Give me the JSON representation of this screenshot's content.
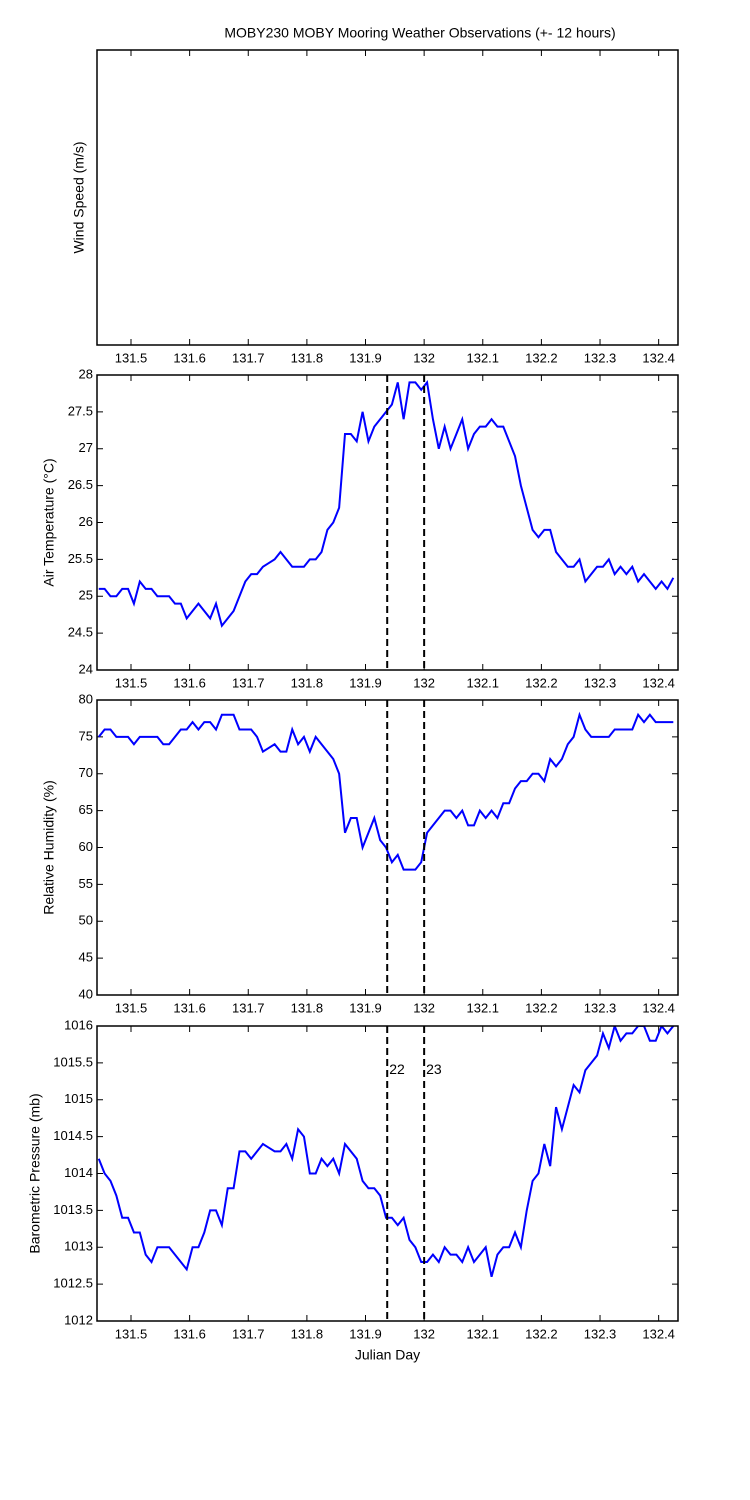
{
  "chart_data": [
    {
      "type": "line",
      "title": "MOBY230 MOBY Mooring Weather Observations (+- 12 hours)",
      "ylabel": "Wind Speed (m/s)",
      "xlim": [
        131.442,
        132.433
      ],
      "xticks": [
        131.5,
        131.6,
        131.7,
        131.8,
        131.9,
        132,
        132.1,
        132.2,
        132.3,
        132.4
      ]
    },
    {
      "type": "line",
      "ylabel": "Air Temperature (°C)",
      "color": "#0000ff",
      "xlim": [
        131.442,
        132.433
      ],
      "xticks": [
        131.5,
        131.6,
        131.7,
        131.8,
        131.9,
        132,
        132.1,
        132.2,
        132.3,
        132.4
      ],
      "ylim": [
        24,
        28
      ],
      "yticks": [
        24,
        24.5,
        25,
        25.5,
        26,
        26.5,
        27,
        27.5,
        28
      ],
      "vlines": [
        131.937,
        132.0
      ],
      "x": [
        131.445,
        131.455,
        131.465,
        131.475,
        131.485,
        131.495,
        131.505,
        131.515,
        131.525,
        131.535,
        131.545,
        131.555,
        131.565,
        131.575,
        131.585,
        131.595,
        131.605,
        131.615,
        131.625,
        131.635,
        131.645,
        131.655,
        131.665,
        131.675,
        131.685,
        131.695,
        131.705,
        131.715,
        131.725,
        131.735,
        131.745,
        131.755,
        131.765,
        131.775,
        131.785,
        131.795,
        131.805,
        131.815,
        131.825,
        131.835,
        131.845,
        131.855,
        131.865,
        131.875,
        131.885,
        131.895,
        131.905,
        131.915,
        131.925,
        131.935,
        131.945,
        131.955,
        131.965,
        131.975,
        131.985,
        131.995,
        132.005,
        132.015,
        132.025,
        132.035,
        132.045,
        132.055,
        132.065,
        132.075,
        132.085,
        132.095,
        132.105,
        132.115,
        132.125,
        132.135,
        132.145,
        132.155,
        132.165,
        132.175,
        132.185,
        132.195,
        132.205,
        132.215,
        132.225,
        132.235,
        132.245,
        132.255,
        132.265,
        132.275,
        132.285,
        132.295,
        132.305,
        132.315,
        132.325,
        132.335,
        132.345,
        132.355,
        132.365,
        132.375,
        132.385,
        132.395,
        132.405,
        132.415,
        132.425
      ],
      "values": [
        25.1,
        25.1,
        25.0,
        25.0,
        25.1,
        25.1,
        24.9,
        25.2,
        25.1,
        25.1,
        25.0,
        25.0,
        25.0,
        24.9,
        24.9,
        24.7,
        24.8,
        24.9,
        24.8,
        24.7,
        24.9,
        24.6,
        24.7,
        24.8,
        25.0,
        25.2,
        25.3,
        25.3,
        25.4,
        25.45,
        25.5,
        25.6,
        25.5,
        25.4,
        25.4,
        25.4,
        25.5,
        25.5,
        25.6,
        25.9,
        26.0,
        26.2,
        27.2,
        27.2,
        27.1,
        27.5,
        27.1,
        27.3,
        27.4,
        27.5,
        27.6,
        27.9,
        27.4,
        27.9,
        27.9,
        27.8,
        27.9,
        27.4,
        27.0,
        27.3,
        27.0,
        27.2,
        27.4,
        27.0,
        27.2,
        27.3,
        27.3,
        27.4,
        27.3,
        27.3,
        27.1,
        26.9,
        26.5,
        26.2,
        25.9,
        25.8,
        25.9,
        25.9,
        25.6,
        25.5,
        25.4,
        25.4,
        25.5,
        25.2,
        25.3,
        25.4,
        25.4,
        25.5,
        25.3,
        25.4,
        25.3,
        25.4,
        25.2,
        25.3,
        25.2,
        25.1,
        25.2,
        25.1,
        25.25
      ]
    },
    {
      "type": "line",
      "ylabel": "Relative Humidity (%)",
      "color": "#0000ff",
      "xlim": [
        131.442,
        132.433
      ],
      "xticks": [
        131.5,
        131.6,
        131.7,
        131.8,
        131.9,
        132,
        132.1,
        132.2,
        132.3,
        132.4
      ],
      "ylim": [
        40,
        80
      ],
      "yticks": [
        40,
        45,
        50,
        55,
        60,
        65,
        70,
        75,
        80
      ],
      "vlines": [
        131.937,
        132.0
      ],
      "x": [
        131.445,
        131.455,
        131.465,
        131.475,
        131.485,
        131.495,
        131.505,
        131.515,
        131.525,
        131.535,
        131.545,
        131.555,
        131.565,
        131.575,
        131.585,
        131.595,
        131.605,
        131.615,
        131.625,
        131.635,
        131.645,
        131.655,
        131.665,
        131.675,
        131.685,
        131.695,
        131.705,
        131.715,
        131.725,
        131.735,
        131.745,
        131.755,
        131.765,
        131.775,
        131.785,
        131.795,
        131.805,
        131.815,
        131.825,
        131.835,
        131.845,
        131.855,
        131.865,
        131.875,
        131.885,
        131.895,
        131.905,
        131.915,
        131.925,
        131.935,
        131.945,
        131.955,
        131.965,
        131.975,
        131.985,
        131.995,
        132.005,
        132.015,
        132.025,
        132.035,
        132.045,
        132.055,
        132.065,
        132.075,
        132.085,
        132.095,
        132.105,
        132.115,
        132.125,
        132.135,
        132.145,
        132.155,
        132.165,
        132.175,
        132.185,
        132.195,
        132.205,
        132.215,
        132.225,
        132.235,
        132.245,
        132.255,
        132.265,
        132.275,
        132.285,
        132.295,
        132.305,
        132.315,
        132.325,
        132.335,
        132.345,
        132.355,
        132.365,
        132.375,
        132.385,
        132.395,
        132.405,
        132.415,
        132.425
      ],
      "values": [
        75,
        76,
        76,
        75,
        75,
        75,
        74,
        75,
        75,
        75,
        75,
        74,
        74,
        75,
        76,
        76,
        77,
        76,
        77,
        77,
        76,
        78,
        78,
        78,
        76,
        76,
        76,
        75,
        73,
        73.5,
        74,
        73,
        73,
        76,
        74,
        75,
        73,
        75,
        74,
        73,
        72,
        70,
        62,
        64,
        64,
        60,
        62,
        64,
        61,
        60,
        58,
        59,
        57,
        57,
        57,
        58,
        62,
        63,
        64,
        65,
        65,
        64,
        65,
        63,
        63,
        65,
        64,
        65,
        64,
        66,
        66,
        68,
        69,
        69,
        70,
        70,
        69,
        72,
        71,
        72,
        74,
        75,
        78,
        76,
        75,
        75,
        75,
        75,
        76,
        76,
        76,
        76,
        78,
        77,
        78,
        77,
        77,
        77,
        77
      ]
    },
    {
      "type": "line",
      "ylabel": "Barometric Pressure (mb)",
      "xlabel": "Julian Day",
      "color": "#0000ff",
      "xlim": [
        131.442,
        132.433
      ],
      "xticks": [
        131.5,
        131.6,
        131.7,
        131.8,
        131.9,
        132,
        132.1,
        132.2,
        132.3,
        132.4
      ],
      "ylim": [
        1012,
        1016
      ],
      "yticks": [
        1012,
        1012.5,
        1013,
        1013.5,
        1014,
        1014.5,
        1015,
        1015.5,
        1016
      ],
      "vlines": [
        131.937,
        132.0
      ],
      "annotations": [
        {
          "text": "22",
          "x": 131.937,
          "y": 1015.4,
          "color": "#cc0000"
        },
        {
          "text": "23",
          "x": 132.0,
          "y": 1015.4,
          "color": "#cc0000"
        }
      ],
      "x": [
        131.445,
        131.455,
        131.465,
        131.475,
        131.485,
        131.495,
        131.505,
        131.515,
        131.525,
        131.535,
        131.545,
        131.555,
        131.565,
        131.575,
        131.585,
        131.595,
        131.605,
        131.615,
        131.625,
        131.635,
        131.645,
        131.655,
        131.665,
        131.675,
        131.685,
        131.695,
        131.705,
        131.715,
        131.725,
        131.735,
        131.745,
        131.755,
        131.765,
        131.775,
        131.785,
        131.795,
        131.805,
        131.815,
        131.825,
        131.835,
        131.845,
        131.855,
        131.865,
        131.875,
        131.885,
        131.895,
        131.905,
        131.915,
        131.925,
        131.935,
        131.945,
        131.955,
        131.965,
        131.975,
        131.985,
        131.995,
        132.005,
        132.015,
        132.025,
        132.035,
        132.045,
        132.055,
        132.065,
        132.075,
        132.085,
        132.095,
        132.105,
        132.115,
        132.125,
        132.135,
        132.145,
        132.155,
        132.165,
        132.175,
        132.185,
        132.195,
        132.205,
        132.215,
        132.225,
        132.235,
        132.245,
        132.255,
        132.265,
        132.275,
        132.285,
        132.295,
        132.305,
        132.315,
        132.325,
        132.335,
        132.345,
        132.355,
        132.365,
        132.375,
        132.385,
        132.395,
        132.405,
        132.415,
        132.425
      ],
      "values": [
        1014.2,
        1014.0,
        1013.9,
        1013.7,
        1013.4,
        1013.4,
        1013.2,
        1013.2,
        1012.9,
        1012.8,
        1013.0,
        1013.0,
        1013.0,
        1012.9,
        1012.8,
        1012.7,
        1013.0,
        1013.0,
        1013.2,
        1013.5,
        1013.5,
        1013.3,
        1013.8,
        1013.8,
        1014.3,
        1014.3,
        1014.2,
        1014.3,
        1014.4,
        1014.35,
        1014.3,
        1014.3,
        1014.4,
        1014.2,
        1014.6,
        1014.5,
        1014.0,
        1014.0,
        1014.2,
        1014.1,
        1014.2,
        1014.0,
        1014.4,
        1014.3,
        1014.2,
        1013.9,
        1013.8,
        1013.8,
        1013.7,
        1013.4,
        1013.4,
        1013.3,
        1013.4,
        1013.1,
        1013.0,
        1012.8,
        1012.8,
        1012.9,
        1012.8,
        1013.0,
        1012.9,
        1012.9,
        1012.8,
        1013.0,
        1012.8,
        1012.9,
        1013.0,
        1012.6,
        1012.9,
        1013.0,
        1013.0,
        1013.2,
        1013.0,
        1013.5,
        1013.9,
        1014.0,
        1014.4,
        1014.1,
        1014.9,
        1014.6,
        1014.9,
        1015.2,
        1015.1,
        1015.4,
        1015.5,
        1015.6,
        1015.9,
        1015.7,
        1016.0,
        1015.8,
        1015.9,
        1015.9,
        1016.0,
        1016.0,
        1015.8,
        1015.8,
        1016.0,
        1015.9,
        1016.0
      ]
    }
  ]
}
